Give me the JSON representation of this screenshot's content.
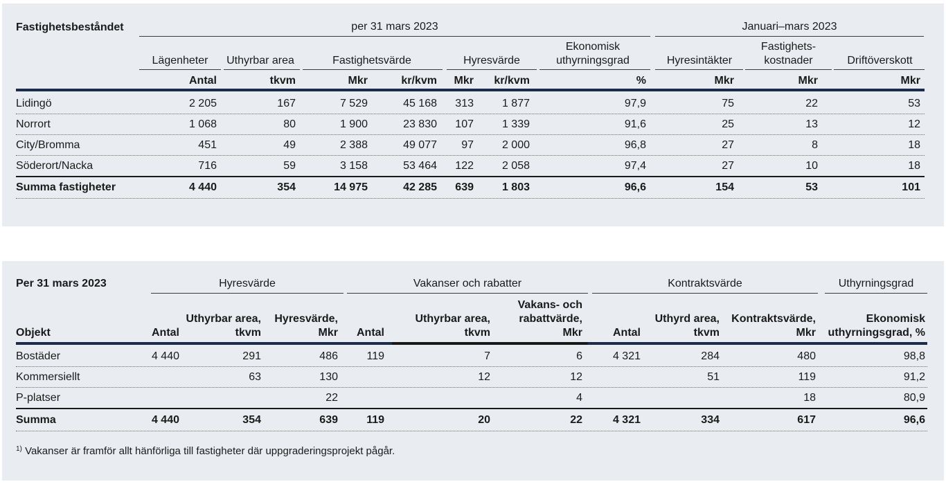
{
  "table1": {
    "title": "Fastighetsbeståndet",
    "group_headers": [
      "per 31 mars 2023",
      "Januari–mars 2023"
    ],
    "column_headers": [
      "Lägenheter",
      "Uthyrbar area",
      "Fastighetsvärde",
      "Hyresvärde",
      "Ekonomisk uthyrningsgrad",
      "Hyresintäkter",
      "Fastighets-kostnader",
      "Driftöverskott"
    ],
    "col_hdr": {
      "c0": "Lägenheter",
      "c1": "Uthyrbar area",
      "c2": "Fastighetsvärde",
      "c3": "Hyresvärde",
      "c4a": "Ekonomisk",
      "c4b": "uthyrningsgrad",
      "c5": "Hyresintäkter",
      "c6a": "Fastighets-",
      "c6b": "kostnader",
      "c7": "Driftöverskott"
    },
    "units": [
      "Antal",
      "tkvm",
      "Mkr",
      "kr/kvm",
      "Mkr",
      "kr/kvm",
      "%",
      "Mkr",
      "Mkr",
      "Mkr"
    ],
    "rows": [
      {
        "label": "Lidingö",
        "values": [
          "2 205",
          "167",
          "7 529",
          "45 168",
          "313",
          "1 877",
          "97,9",
          "75",
          "22",
          "53"
        ]
      },
      {
        "label": "Norrort",
        "values": [
          "1 068",
          "80",
          "1 900",
          "23 830",
          "107",
          "1 339",
          "91,6",
          "25",
          "13",
          "12"
        ]
      },
      {
        "label": "City/Bromma",
        "values": [
          "451",
          "49",
          "2 388",
          "49 077",
          "97",
          "2 000",
          "96,8",
          "27",
          "8",
          "18"
        ]
      },
      {
        "label": "Söderort/Nacka",
        "values": [
          "716",
          "59",
          "3 158",
          "53 464",
          "122",
          "2 058",
          "97,4",
          "27",
          "10",
          "18"
        ]
      }
    ],
    "total": {
      "label": "Summa fastigheter",
      "values": [
        "4 440",
        "354",
        "14 975",
        "42 285",
        "639",
        "1 803",
        "96,6",
        "154",
        "53",
        "101"
      ]
    }
  },
  "table2": {
    "title": "Per 31 mars 2023",
    "group_headers": [
      "Hyresvärde",
      "Vakanser och rabatter",
      "Kontraktsvärde",
      "Uthyrningsgrad"
    ],
    "row_header": "Objekt",
    "column_headers": [
      "Antal",
      "Uthyrbar area, tkvm",
      "Hyresvärde, Mkr",
      "Antal",
      "Uthyrbar area, tkvm",
      "Vakans- och rabattvärde, Mkr",
      "Antal",
      "Uthyrd area, tkvm",
      "Kontraktsvärde, Mkr",
      "Ekonomisk uthyrningsgrad, %"
    ],
    "col_hdr": {
      "h0": "Antal",
      "h1a": "Uthyrbar area,",
      "h1b": "tkvm",
      "h2a": "Hyresvärde,",
      "h2b": "Mkr",
      "h3": "Antal",
      "h4a": "Uthyrbar area,",
      "h4b": "tkvm",
      "h5a": "Vakans- och",
      "h5b": "rabattvärde,",
      "h5c": "Mkr",
      "h6": "Antal",
      "h7a": "Uthyrd area,",
      "h7b": "tkvm",
      "h8a": "Kontraktsvärde,",
      "h8b": "Mkr",
      "h9a": "Ekonomisk",
      "h9b": "uthyrningsgrad, %"
    },
    "rows": [
      {
        "label": "Bostäder",
        "values": [
          "4 440",
          "291",
          "486",
          "119",
          "7",
          "6",
          "4 321",
          "284",
          "480",
          "98,8"
        ]
      },
      {
        "label": "Kommersiellt",
        "values": [
          "",
          "63",
          "130",
          "",
          "12",
          "12",
          "",
          "51",
          "119",
          "91,2"
        ]
      },
      {
        "label": "P-platser",
        "values": [
          "",
          "",
          "22",
          "",
          "",
          "4",
          "",
          "",
          "18",
          "80,9"
        ]
      }
    ],
    "total": {
      "label": "Summa",
      "values": [
        "4 440",
        "354",
        "639",
        "119",
        "20",
        "22",
        "4 321",
        "334",
        "617",
        "96,6"
      ]
    },
    "footnote_marker": "1)",
    "footnote": "Vakanser är framför allt hänförliga till fastigheter där uppgraderingsprojekt pågår."
  }
}
